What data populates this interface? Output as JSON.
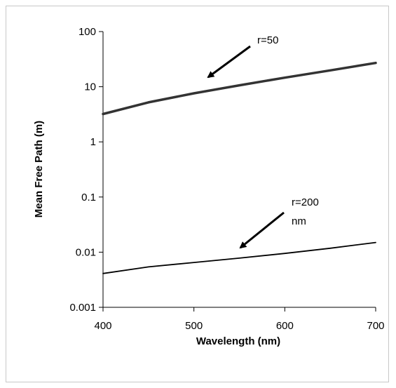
{
  "chart_data": {
    "type": "line",
    "xlabel": "Wavelength (nm)",
    "ylabel": "Mean Free Path (m)",
    "xlim": [
      400,
      700
    ],
    "ylim": [
      0.001,
      100
    ],
    "yscale": "log",
    "xticks": [
      "400",
      "500",
      "600",
      "700"
    ],
    "yticks": [
      "0.001",
      "0.01",
      "0.1",
      "1",
      "10",
      "100"
    ],
    "grid": false,
    "series": [
      {
        "x": [
          400,
          450,
          500,
          550,
          600,
          650,
          700
        ],
        "values": [
          3.2,
          5.2,
          7.6,
          10.6,
          14.6,
          19.8,
          27.0
        ],
        "color": "#333333"
      },
      {
        "x": [
          400,
          450,
          500,
          550,
          600,
          650,
          700
        ],
        "values": [
          0.0041,
          0.0054,
          0.0065,
          0.0078,
          0.0095,
          0.0118,
          0.015
        ],
        "color": "#000000"
      }
    ],
    "annotations": [
      {
        "text_lines": [
          "r=50"
        ],
        "arrow_target": [
          520,
          7.5
        ]
      },
      {
        "text_lines": [
          "r=200",
          "nm"
        ],
        "arrow_target": [
          555,
          0.0085
        ]
      }
    ]
  }
}
